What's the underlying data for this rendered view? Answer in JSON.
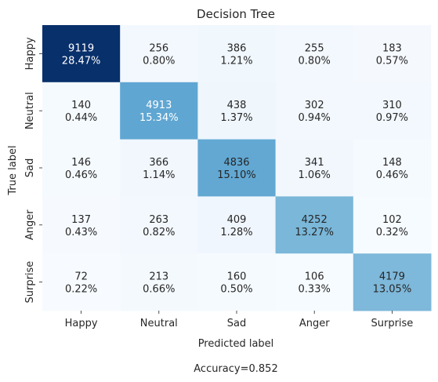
{
  "chart_data": {
    "type": "heatmap",
    "title": "Decision Tree",
    "xlabel": "Predicted label",
    "ylabel": "True label",
    "x_categories": [
      "Happy",
      "Neutral",
      "Sad",
      "Anger",
      "Surprise"
    ],
    "y_categories": [
      "Happy",
      "Neutral",
      "Sad",
      "Anger",
      "Surprise"
    ],
    "values": [
      [
        9119,
        256,
        386,
        255,
        183
      ],
      [
        140,
        4913,
        438,
        302,
        310
      ],
      [
        146,
        366,
        4836,
        341,
        148
      ],
      [
        137,
        263,
        409,
        4252,
        102
      ],
      [
        72,
        213,
        160,
        106,
        4179
      ]
    ],
    "percentages": [
      [
        "28.47%",
        "0.80%",
        "1.21%",
        "0.80%",
        "0.57%"
      ],
      [
        "0.44%",
        "15.34%",
        "1.37%",
        "0.94%",
        "0.97%"
      ],
      [
        "0.46%",
        "1.14%",
        "15.10%",
        "1.06%",
        "0.46%"
      ],
      [
        "0.43%",
        "0.82%",
        "1.28%",
        "13.27%",
        "0.32%"
      ],
      [
        "0.22%",
        "0.66%",
        "0.50%",
        "0.33%",
        "13.05%"
      ]
    ],
    "colormap": "Blues",
    "colorbar": false,
    "footer": "Accuracy=0.852"
  }
}
